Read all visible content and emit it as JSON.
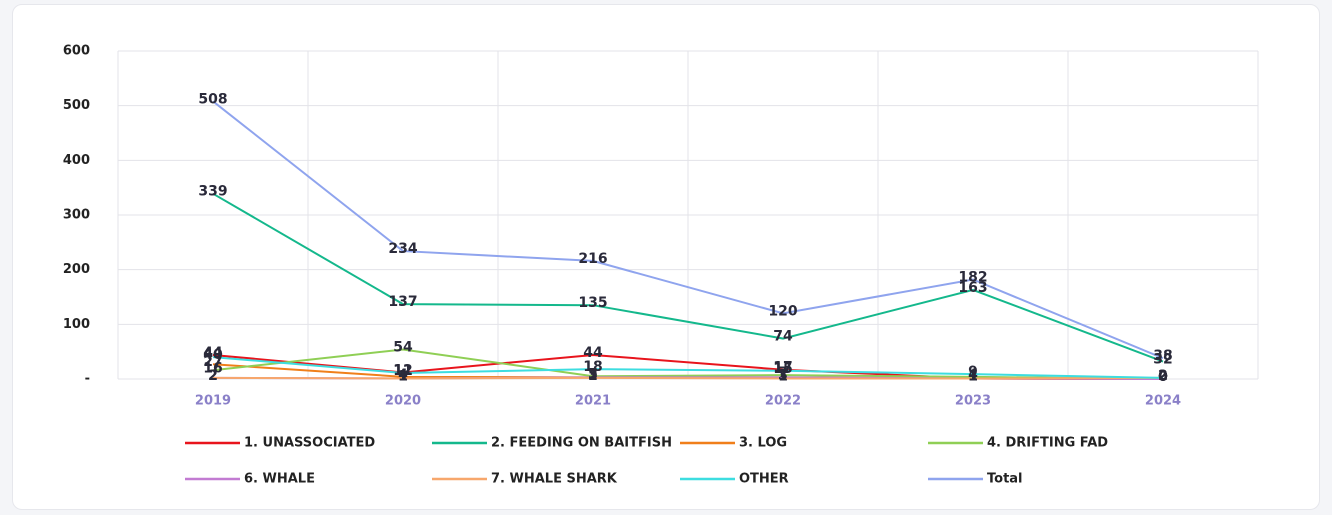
{
  "chart_data": {
    "type": "line",
    "categories": [
      "2019",
      "2020",
      "2021",
      "2022",
      "2023",
      "2024"
    ],
    "series": [
      {
        "name": "1. UNASSOCIATED",
        "color": "#e8141c",
        "values": [
          44,
          12,
          44,
          17,
          1,
          0
        ]
      },
      {
        "name": "2. FEEDING ON BAITFISH",
        "color": "#14b88c",
        "values": [
          339,
          137,
          135,
          74,
          163,
          32
        ]
      },
      {
        "name": "3. LOG",
        "color": "#f07f1a",
        "values": [
          27,
          4,
          3,
          3,
          1,
          0
        ]
      },
      {
        "name": "4. DRIFTING FAD",
        "color": "#8fcf55",
        "values": [
          16,
          54,
          5,
          7,
          4,
          0
        ]
      },
      {
        "name": "6. WHALE",
        "color": "#c27bd2",
        "values": [
          2,
          1,
          3,
          3,
          1,
          0
        ]
      },
      {
        "name": "7. WHALE SHARK",
        "color": "#f7a76c",
        "values": [
          2,
          1,
          2,
          1,
          1,
          2
        ]
      },
      {
        "name": "OTHER",
        "color": "#3ddde0",
        "values": [
          40,
          11,
          18,
          15,
          9,
          2
        ]
      },
      {
        "name": "Total",
        "color": "#8fa4ee",
        "values": [
          508,
          234,
          216,
          120,
          182,
          38
        ]
      }
    ],
    "ylim": [
      0,
      600
    ],
    "yticks": [
      {
        "value": 0,
        "label": "-"
      },
      100,
      200,
      300,
      400,
      500,
      600
    ],
    "grid": true
  }
}
